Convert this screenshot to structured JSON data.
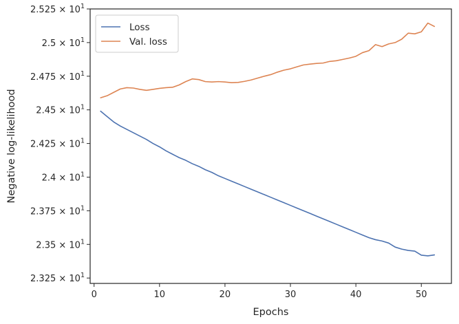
{
  "chart_data": {
    "type": "line",
    "title": "",
    "xlabel": "Epochs",
    "ylabel": "Negative log-likelihood",
    "xlim": [
      -0.6,
      54.6
    ],
    "ylim": [
      23.21,
      25.25
    ],
    "x_ticks": [
      {
        "value": 0,
        "label": "0"
      },
      {
        "value": 10,
        "label": "10"
      },
      {
        "value": 20,
        "label": "20"
      },
      {
        "value": 30,
        "label": "30"
      },
      {
        "value": 40,
        "label": "40"
      },
      {
        "value": 50,
        "label": "50"
      }
    ],
    "y_ticks": [
      {
        "value": 23.25,
        "mantissa": "2.325"
      },
      {
        "value": 23.5,
        "mantissa": "2.35"
      },
      {
        "value": 23.75,
        "mantissa": "2.375"
      },
      {
        "value": 24.0,
        "mantissa": "2.4"
      },
      {
        "value": 24.25,
        "mantissa": "2.425"
      },
      {
        "value": 24.5,
        "mantissa": "2.45"
      },
      {
        "value": 24.75,
        "mantissa": "2.475"
      },
      {
        "value": 25.0,
        "mantissa": "2.5"
      },
      {
        "value": 25.25,
        "mantissa": "2.525"
      }
    ],
    "y_tick_suffix": {
      "times": "×",
      "base": "10",
      "exponent": "1"
    },
    "grid": false,
    "legend_position": "upper-left",
    "x": [
      1,
      2,
      3,
      4,
      5,
      6,
      7,
      8,
      9,
      10,
      11,
      12,
      13,
      14,
      15,
      16,
      17,
      18,
      19,
      20,
      21,
      22,
      23,
      24,
      25,
      26,
      27,
      28,
      29,
      30,
      31,
      32,
      33,
      34,
      35,
      36,
      37,
      38,
      39,
      40,
      41,
      42,
      43,
      44,
      45,
      46,
      47,
      48,
      49,
      50,
      51,
      52
    ],
    "series": [
      {
        "name": "Loss",
        "color": "#4c72b0",
        "values": [
          24.49,
          24.45,
          24.41,
          24.38,
          24.355,
          24.33,
          24.305,
          24.28,
          24.25,
          24.225,
          24.195,
          24.17,
          24.145,
          24.125,
          24.1,
          24.08,
          24.055,
          24.035,
          24.01,
          23.99,
          23.97,
          23.95,
          23.93,
          23.91,
          23.89,
          23.87,
          23.85,
          23.83,
          23.81,
          23.79,
          23.77,
          23.75,
          23.73,
          23.71,
          23.69,
          23.67,
          23.65,
          23.63,
          23.61,
          23.59,
          23.57,
          23.55,
          23.535,
          23.525,
          23.51,
          23.48,
          23.465,
          23.455,
          23.45,
          23.42,
          23.415,
          23.422
        ]
      },
      {
        "name": "Val. loss",
        "color": "#dd8452",
        "values": [
          24.59,
          24.605,
          24.63,
          24.655,
          24.665,
          24.662,
          24.652,
          24.645,
          24.652,
          24.66,
          24.665,
          24.668,
          24.685,
          24.71,
          24.73,
          24.725,
          24.71,
          24.707,
          24.71,
          24.707,
          24.702,
          24.704,
          24.712,
          24.722,
          24.736,
          24.75,
          24.762,
          24.78,
          24.795,
          24.805,
          24.82,
          24.834,
          24.84,
          24.845,
          24.848,
          24.86,
          24.865,
          24.875,
          24.885,
          24.898,
          24.925,
          24.94,
          24.985,
          24.97,
          24.99,
          25.0,
          25.025,
          25.07,
          25.065,
          25.08,
          25.145,
          25.12
        ]
      }
    ]
  }
}
